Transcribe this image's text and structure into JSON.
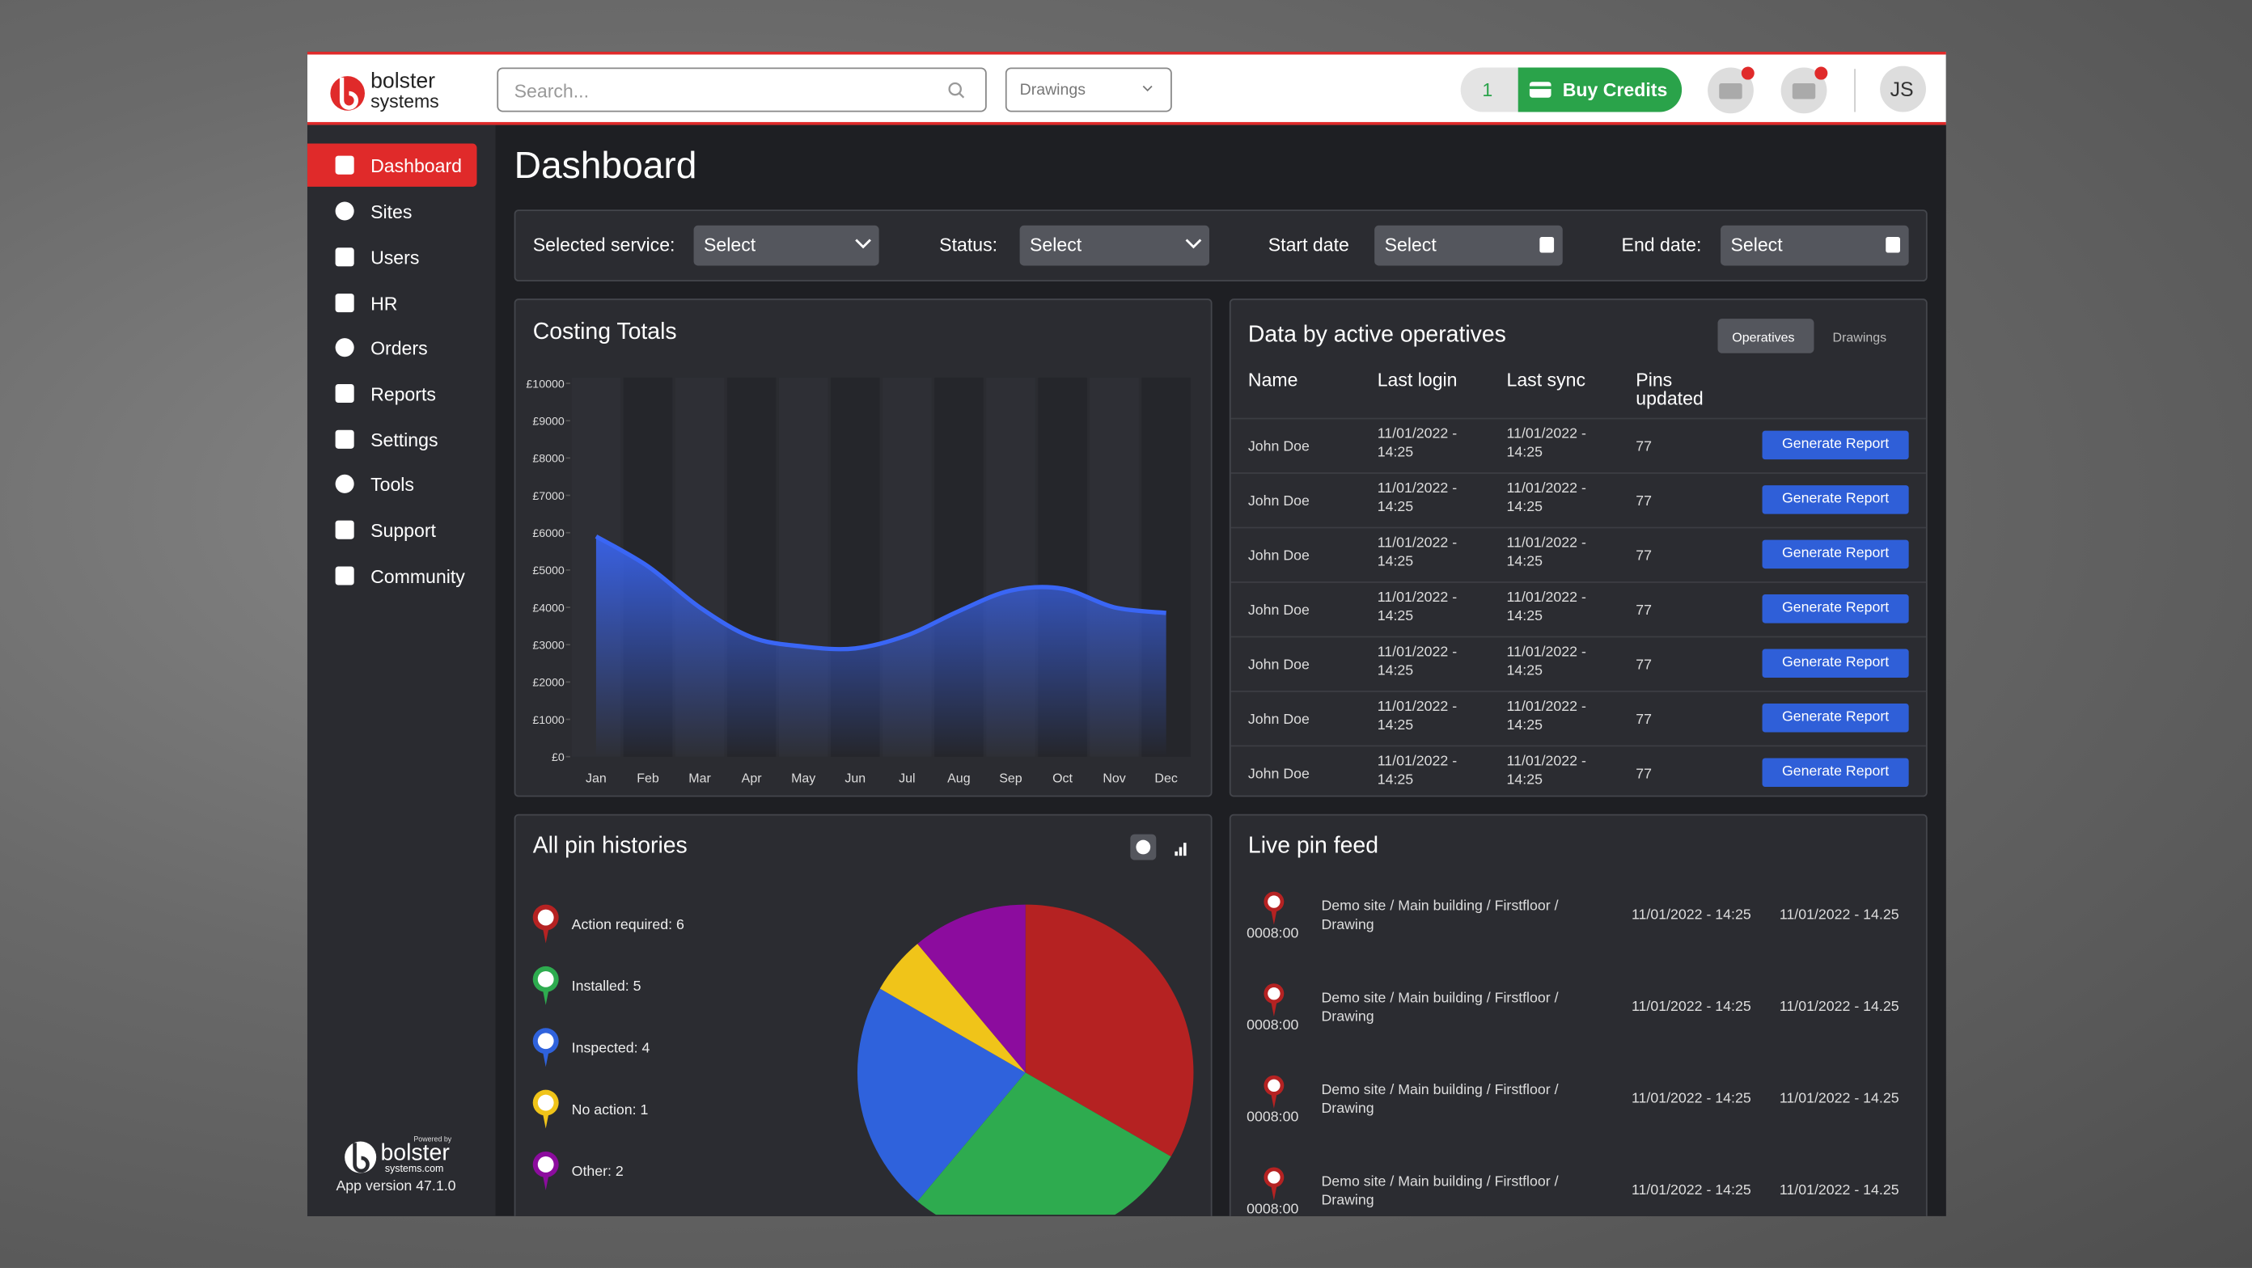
{
  "header": {
    "logo": [
      "bolster",
      "systems"
    ],
    "search_placeholder": "Search...",
    "project_select": "Drawings",
    "credits": "1",
    "buy_credits": "Buy Credits",
    "user_initials": "JS"
  },
  "sidebar": {
    "items": [
      "Dashboard",
      "Sites",
      "Users",
      "HR",
      "Orders",
      "Reports",
      "Settings",
      "Tools",
      "Support",
      "Community"
    ],
    "active": "Dashboard",
    "powered_by": "Powered by",
    "footer_logo": [
      "bolster",
      "systems.com"
    ],
    "app_version": "App version 47.1.0"
  },
  "page_title": "Dashboard",
  "filters": [
    {
      "label": "Selected service:",
      "value": "Select"
    },
    {
      "label": "Status:",
      "value": "Select"
    },
    {
      "label": "Start date",
      "value": "Select"
    },
    {
      "label": "End date:",
      "value": "Select"
    }
  ],
  "costing_totals": {
    "type": "area",
    "title": "Costing Totals",
    "categories": [
      "Jan",
      "Feb",
      "Mar",
      "Apr",
      "May",
      "Jun",
      "Jul",
      "Aug",
      "Sep",
      "Oct",
      "Nov",
      "Dec"
    ],
    "values": [
      5900,
      5100,
      4000,
      3200,
      2950,
      2900,
      3250,
      3900,
      4450,
      4500,
      4000,
      3850
    ],
    "color": "#3a66f5",
    "ylim": [
      0,
      10000
    ],
    "yticks": [
      {
        "value": 0,
        "label": "£0"
      },
      {
        "value": 1000,
        "label": "£1000"
      },
      {
        "value": 2000,
        "label": "£2000"
      },
      {
        "value": 3000,
        "label": "£3000"
      },
      {
        "value": 4000,
        "label": "£4000"
      },
      {
        "value": 5000,
        "label": "£5000"
      },
      {
        "value": 6000,
        "label": "£6000"
      },
      {
        "value": 7000,
        "label": "£7000"
      },
      {
        "value": 8000,
        "label": "£8000"
      },
      {
        "value": 9000,
        "label": "£9000"
      },
      {
        "value": 10000,
        "label": "£10000"
      }
    ]
  },
  "operatives": {
    "title": "Data by active operatives",
    "tabs": [
      "Operatives",
      "Drawings"
    ],
    "columns": [
      "Name",
      "Last login",
      "Last sync",
      "Pins updated"
    ],
    "button": "Generate Report",
    "rows": [
      [
        "John Doe",
        "11/01/2022 - 14:25",
        "11/01/2022 - 14:25",
        "77"
      ],
      [
        "John Doe",
        "11/01/2022 - 14:25",
        "11/01/2022 - 14:25",
        "77"
      ],
      [
        "John Doe",
        "11/01/2022 - 14:25",
        "11/01/2022 - 14:25",
        "77"
      ],
      [
        "John Doe",
        "11/01/2022 - 14:25",
        "11/01/2022 - 14:25",
        "77"
      ],
      [
        "John Doe",
        "11/01/2022 - 14:25",
        "11/01/2022 - 14:25",
        "77"
      ],
      [
        "John Doe",
        "11/01/2022 - 14:25",
        "11/01/2022 - 14:25",
        "77"
      ],
      [
        "John Doe",
        "11/01/2022 - 14:25",
        "11/01/2022 - 14:25",
        "77"
      ]
    ]
  },
  "pin_histories": {
    "type": "pie",
    "title": "All pin histories",
    "labels": [
      "Action required: 6",
      "Installed: 5",
      "Inspected: 4",
      "No action: 1",
      "Other: 2"
    ],
    "values": [
      6,
      5,
      4,
      1,
      2
    ],
    "colors": [
      "#b52222",
      "#2eab4f",
      "#2f62dc",
      "#f0c419",
      "#8c0c9e"
    ]
  },
  "live_feed": {
    "title": "Live pin feed",
    "rows": [
      {
        "id": "0008:00",
        "location": "Demo site / Main building / Firstfloor / Drawing",
        "date1": "11/01/2022 - 14:25",
        "date2": "11/01/2022 - 14.25"
      },
      {
        "id": "0008:00",
        "location": "Demo site / Main building / Firstfloor / Drawing",
        "date1": "11/01/2022 - 14:25",
        "date2": "11/01/2022 - 14.25"
      },
      {
        "id": "0008:00",
        "location": "Demo site / Main building / Firstfloor / Drawing",
        "date1": "11/01/2022 - 14:25",
        "date2": "11/01/2022 - 14.25"
      },
      {
        "id": "0008:00",
        "location": "Demo site / Main building / Firstfloor / Drawing",
        "date1": "11/01/2022 - 14:25",
        "date2": "11/01/2022 - 14.25"
      }
    ]
  }
}
